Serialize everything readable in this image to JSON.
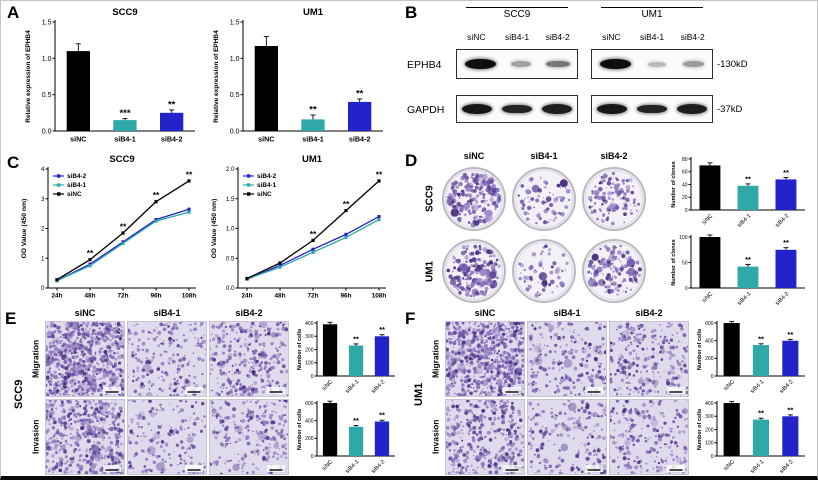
{
  "group_colors": {
    "siNC": "#000000",
    "siB4-1": "#2fa8a8",
    "siB4-2": "#2323cb"
  },
  "stain_palette": [
    "#5a3f96",
    "#7157ab",
    "#8a73bd",
    "#9d89c9",
    "#49307e"
  ],
  "panels": {
    "A": {
      "label": "A"
    },
    "B": {
      "label": "B",
      "cell_groups": [
        "SCC9",
        "UM1"
      ],
      "lanes": [
        "siNC",
        "siB4-1",
        "siB4-2"
      ],
      "rows": [
        {
          "protein": "EPHB4",
          "size_label": "-130kD",
          "intensities": [
            [
              1.0,
              0.3,
              0.5
            ],
            [
              1.0,
              0.18,
              0.32
            ]
          ]
        },
        {
          "protein": "GAPDH",
          "size_label": "-37kD",
          "intensities": [
            [
              0.95,
              0.9,
              0.92
            ],
            [
              0.95,
              0.9,
              0.92
            ]
          ]
        }
      ]
    },
    "C": {
      "label": "C"
    },
    "D": {
      "label": "D",
      "columns": [
        "siNC",
        "siB4-1",
        "siB4-2"
      ],
      "rows": [
        "SCC9",
        "UM1"
      ],
      "densities": [
        [
          0.85,
          0.4,
          0.55
        ],
        [
          0.8,
          0.35,
          0.65
        ]
      ]
    },
    "E": {
      "label": "E",
      "cell_line": "SCC9",
      "columns": [
        "siNC",
        "siB4-1",
        "siB4-2"
      ],
      "rows": [
        "Migration",
        "Invasion"
      ],
      "densities": [
        [
          1.0,
          0.45,
          0.6
        ],
        [
          0.8,
          0.4,
          0.5
        ]
      ]
    },
    "F": {
      "label": "F",
      "cell_line": "UM1",
      "columns": [
        "siNC",
        "siB4-1",
        "siB4-2"
      ],
      "rows": [
        "Migration",
        "Invasion"
      ],
      "densities": [
        [
          0.95,
          0.5,
          0.55
        ],
        [
          0.7,
          0.45,
          0.5
        ]
      ]
    }
  },
  "chart_data": [
    {
      "id": "A-SCC9",
      "type": "bar",
      "title": "SCC9",
      "ylabel": "Relative expression of EPHB4",
      "categories": [
        "siNC",
        "siB4-1",
        "siB4-2"
      ],
      "values": [
        1.1,
        0.15,
        0.25
      ],
      "errors": [
        0.1,
        0.02,
        0.04
      ],
      "sig": [
        "",
        "***",
        "**"
      ],
      "ylim": [
        0,
        1.5
      ],
      "yticks": [
        0,
        0.5,
        1,
        1.5
      ],
      "ytick_labels": [
        "0.0",
        "0.5",
        "1.0",
        "1.5"
      ]
    },
    {
      "id": "A-UM1",
      "type": "bar",
      "title": "UM1",
      "ylabel": "Relative expression of EPHB4",
      "categories": [
        "siNC",
        "siB4-1",
        "siB4-2"
      ],
      "values": [
        1.17,
        0.16,
        0.4
      ],
      "errors": [
        0.13,
        0.06,
        0.04
      ],
      "sig": [
        "",
        "**",
        "**"
      ],
      "ylim": [
        0,
        1.5
      ],
      "yticks": [
        0,
        0.5,
        1,
        1.5
      ],
      "ytick_labels": [
        "0.0",
        "0.5",
        "1.0",
        "1.5"
      ]
    },
    {
      "id": "C-SCC9",
      "type": "line",
      "title": "SCC9",
      "ylabel": "OD Value (450 nm)",
      "x": [
        "24h",
        "48h",
        "72h",
        "96h",
        "108h"
      ],
      "series": [
        {
          "name": "siB4-2",
          "values": [
            0.25,
            0.8,
            1.55,
            2.3,
            2.65
          ]
        },
        {
          "name": "siB4-1",
          "values": [
            0.25,
            0.75,
            1.5,
            2.25,
            2.55
          ]
        },
        {
          "name": "siNC",
          "values": [
            0.28,
            0.95,
            1.85,
            2.9,
            3.6
          ]
        }
      ],
      "sig": [
        {
          "x": 1,
          "label": "**"
        },
        {
          "x": 2,
          "label": "**"
        },
        {
          "x": 3,
          "label": "**"
        },
        {
          "x": 4,
          "label": "**"
        }
      ],
      "ylim": [
        0,
        4
      ],
      "yticks": [
        0,
        1,
        2,
        3,
        4
      ],
      "ytick_labels": [
        "0",
        "1",
        "2",
        "3",
        "4"
      ],
      "legend_order": [
        "siB4-2",
        "siB4-1",
        "siNC"
      ]
    },
    {
      "id": "C-UM1",
      "type": "line",
      "title": "UM1",
      "ylabel": "OD Value (450 nm)",
      "x": [
        "24h",
        "48h",
        "72h",
        "96h",
        "108h"
      ],
      "series": [
        {
          "name": "siB4-2",
          "values": [
            0.15,
            0.38,
            0.65,
            0.9,
            1.2
          ]
        },
        {
          "name": "siB4-1",
          "values": [
            0.15,
            0.35,
            0.6,
            0.85,
            1.15
          ]
        },
        {
          "name": "siNC",
          "values": [
            0.16,
            0.42,
            0.8,
            1.3,
            1.8
          ]
        }
      ],
      "sig": [
        {
          "x": 2,
          "label": "**"
        },
        {
          "x": 3,
          "label": "**"
        },
        {
          "x": 4,
          "label": "**"
        }
      ],
      "ylim": [
        0,
        2
      ],
      "yticks": [
        0,
        0.5,
        1,
        1.5,
        2
      ],
      "ytick_labels": [
        "0.0",
        "0.5",
        "1.0",
        "1.5",
        "2.0"
      ],
      "legend_order": [
        "siB4-2",
        "siB4-1",
        "siNC"
      ]
    },
    {
      "id": "D-SCC9-clones",
      "type": "bar",
      "small": true,
      "ylabel": "Number of clones",
      "categories": [
        "siNC",
        "siB4-1",
        "siB4-2"
      ],
      "values": [
        70,
        38,
        48
      ],
      "errors": [
        4,
        3,
        3
      ],
      "sig": [
        "",
        "**",
        "**"
      ],
      "ylim": [
        0,
        80
      ],
      "yticks": [
        0,
        20,
        40,
        60,
        80
      ],
      "ytick_labels": [
        "0",
        "20",
        "40",
        "60",
        "80"
      ]
    },
    {
      "id": "D-UM1-clones",
      "type": "bar",
      "small": true,
      "ylabel": "Number of clones",
      "categories": [
        "siNC",
        "siB4-1",
        "siB4-2"
      ],
      "values": [
        100,
        42,
        75
      ],
      "errors": [
        4,
        4,
        4
      ],
      "sig": [
        "",
        "**",
        "**"
      ],
      "ylim": [
        0,
        100
      ],
      "yticks": [
        0,
        50,
        100
      ],
      "ytick_labels": [
        "0",
        "50",
        "100"
      ]
    },
    {
      "id": "E-SCC9-migration",
      "type": "bar",
      "small": true,
      "ylabel": "Number of cells",
      "categories": [
        "siNC",
        "siB4-1",
        "siB4-2"
      ],
      "values": [
        390,
        230,
        300
      ],
      "errors": [
        15,
        12,
        12
      ],
      "sig": [
        "",
        "**",
        "**"
      ],
      "ylim": [
        0,
        400
      ],
      "yticks": [
        0,
        100,
        200,
        300,
        400
      ],
      "ytick_labels": [
        "0",
        "100",
        "200",
        "300",
        "400"
      ]
    },
    {
      "id": "E-SCC9-invasion",
      "type": "bar",
      "small": true,
      "ylabel": "Number of cells",
      "categories": [
        "siNC",
        "siB4-1",
        "siB4-2"
      ],
      "values": [
        600,
        330,
        390
      ],
      "errors": [
        20,
        15,
        15
      ],
      "sig": [
        "",
        "**",
        "**"
      ],
      "ylim": [
        0,
        600
      ],
      "yticks": [
        0,
        200,
        400,
        600
      ],
      "ytick_labels": [
        "0",
        "200",
        "400",
        "600"
      ]
    },
    {
      "id": "F-UM1-migration",
      "type": "bar",
      "small": true,
      "ylabel": "Number of cells",
      "categories": [
        "siNC",
        "siB4-1",
        "siB4-2"
      ],
      "values": [
        600,
        350,
        400
      ],
      "errors": [
        18,
        15,
        15
      ],
      "sig": [
        "",
        "**",
        "**"
      ],
      "ylim": [
        0,
        600
      ],
      "yticks": [
        0,
        200,
        400,
        600
      ],
      "ytick_labels": [
        "0",
        "200",
        "400",
        "600"
      ]
    },
    {
      "id": "F-UM1-invasion",
      "type": "bar",
      "small": true,
      "ylabel": "Number of cells",
      "categories": [
        "siNC",
        "siB4-1",
        "siB4-2"
      ],
      "values": [
        400,
        275,
        300
      ],
      "errors": [
        12,
        10,
        10
      ],
      "sig": [
        "",
        "**",
        "**"
      ],
      "ylim": [
        0,
        400
      ],
      "yticks": [
        0,
        100,
        200,
        300,
        400
      ],
      "ytick_labels": [
        "0",
        "100",
        "200",
        "300",
        "400"
      ]
    }
  ]
}
